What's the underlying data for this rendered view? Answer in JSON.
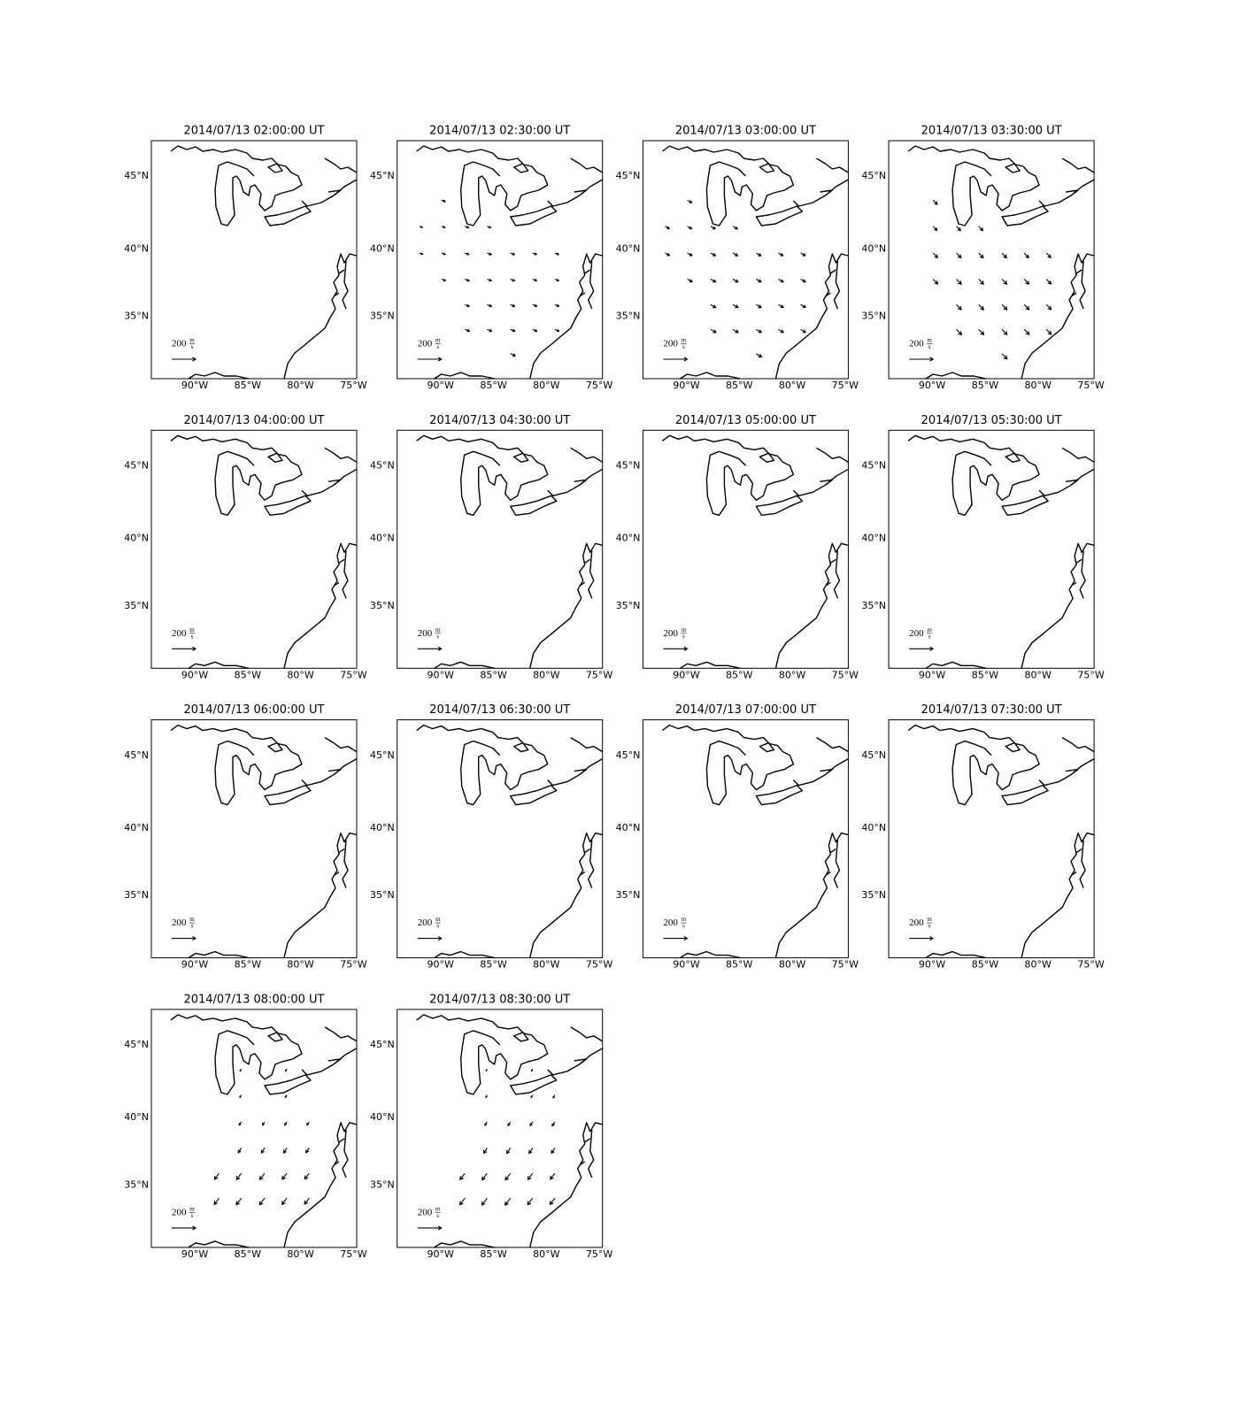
{
  "chart_data": {
    "type": "quiver",
    "projection": "mercator",
    "xlim": [
      -94.1,
      -74.7
    ],
    "ylim": [
      30.1,
      47.3
    ],
    "xticks": [
      {
        "value": -90,
        "label": "90°W"
      },
      {
        "value": -85,
        "label": "85°W"
      },
      {
        "value": -80,
        "label": "80°W"
      },
      {
        "value": -75,
        "label": "75°W"
      }
    ],
    "yticks": [
      {
        "value": 35,
        "label": "35°N"
      },
      {
        "value": 40,
        "label": "40°N"
      },
      {
        "value": 45,
        "label": "45°N"
      }
    ],
    "color": "#000000",
    "key": {
      "value": 200,
      "label": "200",
      "unit_top": "m",
      "unit_bottom": "s"
    },
    "panels": [
      {
        "title": "2014/07/13 02:00:00 UT"
      },
      {
        "title": "2014/07/13 02:30:00 UT",
        "vectors": {
          "lon": [
            -89.9,
            -92.0,
            -89.9,
            -87.7,
            -85.6,
            -92.0,
            -89.9,
            -87.7,
            -85.6,
            -83.4,
            -81.3,
            -79.2,
            -89.9,
            -87.7,
            -85.6,
            -83.4,
            -81.3,
            -79.2,
            -87.7,
            -85.6,
            -83.4,
            -81.3,
            -79.2,
            -87.7,
            -85.6,
            -83.4,
            -81.3,
            -79.2,
            -83.4
          ],
          "lat": [
            43.4,
            41.6,
            41.6,
            41.6,
            41.6,
            39.7,
            39.7,
            39.7,
            39.7,
            39.7,
            39.7,
            39.7,
            37.8,
            37.8,
            37.8,
            37.8,
            37.8,
            37.8,
            35.9,
            35.9,
            35.9,
            35.9,
            35.9,
            34.0,
            34.0,
            34.0,
            34.0,
            34.0,
            32.1
          ],
          "u": [
            30,
            25,
            28,
            32,
            30,
            28,
            30,
            33,
            35,
            34,
            33,
            32,
            33,
            35,
            36,
            35,
            34,
            33,
            36,
            37,
            36,
            35,
            34,
            38,
            38,
            37,
            36,
            35,
            40
          ],
          "v": [
            -12,
            -10,
            -11,
            -12,
            -12,
            -10,
            -11,
            -12,
            -13,
            -13,
            -12,
            -12,
            -13,
            -14,
            -14,
            -14,
            -13,
            -13,
            -15,
            -15,
            -15,
            -14,
            -14,
            -16,
            -16,
            -15,
            -15,
            -15,
            -18
          ]
        }
      },
      {
        "title": "2014/07/13 03:00:00 UT",
        "vectors": {
          "lon": [
            -89.9,
            -92.0,
            -89.9,
            -87.7,
            -85.6,
            -92.0,
            -89.9,
            -87.7,
            -85.6,
            -83.4,
            -81.3,
            -79.2,
            -89.9,
            -87.7,
            -85.6,
            -83.4,
            -81.3,
            -79.2,
            -87.7,
            -85.6,
            -83.4,
            -81.3,
            -79.2,
            -87.7,
            -85.6,
            -83.4,
            -81.3,
            -79.2,
            -83.4
          ],
          "lat": [
            43.4,
            41.6,
            41.6,
            41.6,
            41.6,
            39.7,
            39.7,
            39.7,
            39.7,
            39.7,
            39.7,
            39.7,
            37.8,
            37.8,
            37.8,
            37.8,
            37.8,
            37.8,
            35.9,
            35.9,
            35.9,
            35.9,
            35.9,
            34.0,
            34.0,
            34.0,
            34.0,
            34.0,
            32.1
          ],
          "u": [
            36,
            34,
            36,
            38,
            38,
            36,
            38,
            40,
            40,
            40,
            38,
            38,
            40,
            42,
            42,
            41,
            40,
            40,
            42,
            43,
            42,
            41,
            40,
            44,
            44,
            43,
            42,
            41,
            45
          ],
          "v": [
            -22,
            -20,
            -21,
            -22,
            -22,
            -20,
            -21,
            -22,
            -23,
            -23,
            -22,
            -22,
            -23,
            -24,
            -24,
            -24,
            -23,
            -23,
            -25,
            -25,
            -25,
            -24,
            -24,
            -26,
            -26,
            -25,
            -25,
            -25,
            -28
          ]
        }
      },
      {
        "title": "2014/07/13 03:30:00 UT",
        "vectors": {
          "lon": [
            -89.9,
            -89.9,
            -87.7,
            -85.6,
            -89.9,
            -87.7,
            -85.6,
            -83.4,
            -81.3,
            -79.2,
            -89.9,
            -87.7,
            -85.6,
            -83.4,
            -81.3,
            -79.2,
            -87.7,
            -85.6,
            -83.4,
            -81.3,
            -79.2,
            -87.7,
            -85.6,
            -83.4,
            -81.3,
            -79.2,
            -83.4
          ],
          "lat": [
            43.4,
            41.6,
            41.6,
            41.6,
            39.7,
            39.7,
            39.7,
            39.7,
            39.7,
            39.7,
            37.8,
            37.8,
            37.8,
            37.8,
            37.8,
            37.8,
            35.9,
            35.9,
            35.9,
            35.9,
            35.9,
            34.0,
            34.0,
            34.0,
            34.0,
            34.0,
            32.1
          ],
          "u": [
            34,
            32,
            34,
            34,
            36,
            38,
            38,
            38,
            37,
            36,
            38,
            40,
            40,
            40,
            39,
            38,
            40,
            41,
            41,
            40,
            39,
            42,
            42,
            42,
            41,
            40,
            42
          ],
          "v": [
            -36,
            -34,
            -36,
            -36,
            -38,
            -40,
            -40,
            -40,
            -39,
            -38,
            -40,
            -42,
            -42,
            -42,
            -41,
            -40,
            -42,
            -43,
            -43,
            -42,
            -41,
            -44,
            -44,
            -44,
            -43,
            -42,
            -45
          ]
        }
      },
      {
        "title": "2014/07/13 04:00:00 UT"
      },
      {
        "title": "2014/07/13 04:30:00 UT"
      },
      {
        "title": "2014/07/13 05:00:00 UT"
      },
      {
        "title": "2014/07/13 05:30:00 UT"
      },
      {
        "title": "2014/07/13 06:00:00 UT"
      },
      {
        "title": "2014/07/13 06:30:00 UT"
      },
      {
        "title": "2014/07/13 07:00:00 UT"
      },
      {
        "title": "2014/07/13 07:30:00 UT"
      },
      {
        "title": "2014/07/13 08:00:00 UT",
        "vectors": {
          "lon": [
            -85.6,
            -81.3,
            -85.6,
            -81.3,
            -85.6,
            -83.4,
            -81.3,
            -79.2,
            -85.6,
            -83.4,
            -81.3,
            -79.2,
            -87.7,
            -85.6,
            -83.4,
            -81.3,
            -79.2,
            -87.7,
            -85.6,
            -83.4,
            -81.3,
            -79.2
          ],
          "lat": [
            43.4,
            43.4,
            41.6,
            41.6,
            39.7,
            39.7,
            39.7,
            39.7,
            37.8,
            37.8,
            37.8,
            37.8,
            35.9,
            35.9,
            35.9,
            35.9,
            35.9,
            34.0,
            34.0,
            34.0,
            34.0,
            34.0
          ],
          "u": [
            -10,
            -10,
            -12,
            -12,
            -18,
            -18,
            -18,
            -18,
            -25,
            -26,
            -26,
            -25,
            -38,
            -40,
            -40,
            -38,
            -36,
            -40,
            -42,
            -42,
            -40,
            -38
          ],
          "v": [
            -18,
            -18,
            -20,
            -20,
            -28,
            -28,
            -28,
            -28,
            -40,
            -42,
            -42,
            -40,
            -50,
            -52,
            -52,
            -50,
            -48,
            -52,
            -55,
            -55,
            -52,
            -50
          ]
        }
      },
      {
        "title": "2014/07/13 08:30:00 UT",
        "vectors": {
          "lon": [
            -85.6,
            -81.3,
            -85.6,
            -81.3,
            -79.2,
            -85.6,
            -83.4,
            -81.3,
            -79.2,
            -85.6,
            -83.4,
            -81.3,
            -79.2,
            -87.7,
            -85.6,
            -83.4,
            -81.3,
            -79.2,
            -87.7,
            -85.6,
            -83.4,
            -81.3,
            -79.2
          ],
          "lat": [
            43.4,
            43.4,
            41.6,
            41.6,
            41.6,
            39.7,
            39.7,
            39.7,
            39.7,
            37.8,
            37.8,
            37.8,
            37.8,
            35.9,
            35.9,
            35.9,
            35.9,
            35.9,
            34.0,
            34.0,
            34.0,
            34.0,
            34.0
          ],
          "u": [
            -8,
            -10,
            -10,
            -12,
            -14,
            -18,
            -20,
            -20,
            -22,
            -28,
            -30,
            -30,
            -28,
            -40,
            -42,
            -42,
            -40,
            -38,
            -42,
            -44,
            -44,
            -42,
            -40
          ],
          "v": [
            -16,
            -18,
            -20,
            -20,
            -24,
            -30,
            -32,
            -32,
            -34,
            -44,
            -46,
            -46,
            -44,
            -52,
            -55,
            -55,
            -52,
            -50,
            -55,
            -58,
            -58,
            -55,
            -52
          ]
        }
      }
    ]
  }
}
